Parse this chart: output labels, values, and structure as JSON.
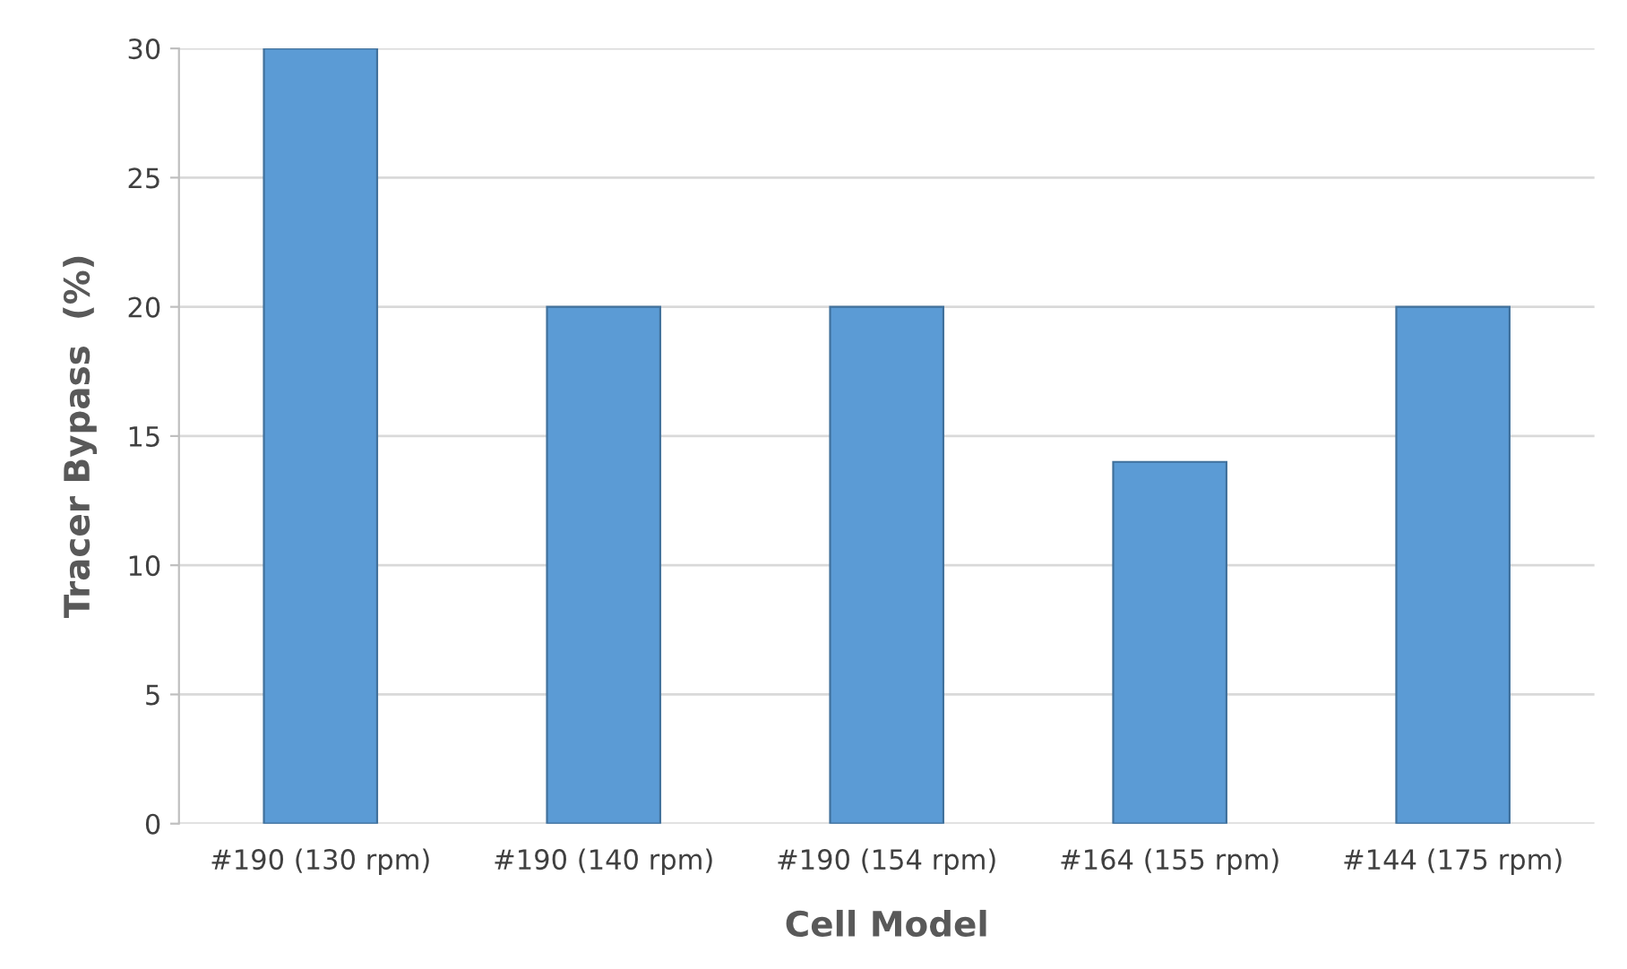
{
  "chart_data": {
    "type": "bar",
    "xlabel": "Cell Model",
    "ylabel": "Tracer Bypass  (%)",
    "categories": [
      "#190 (130 rpm)",
      "#190 (140 rpm)",
      "#190 (154 rpm)",
      "#164 (155 rpm)",
      "#144 (175 rpm)"
    ],
    "values": [
      30,
      20,
      20,
      14,
      20
    ],
    "color": "#5b9bd5",
    "ylim": [
      0,
      30
    ],
    "yticks": [
      0,
      5,
      10,
      15,
      20,
      25,
      30
    ],
    "grid": "y"
  }
}
